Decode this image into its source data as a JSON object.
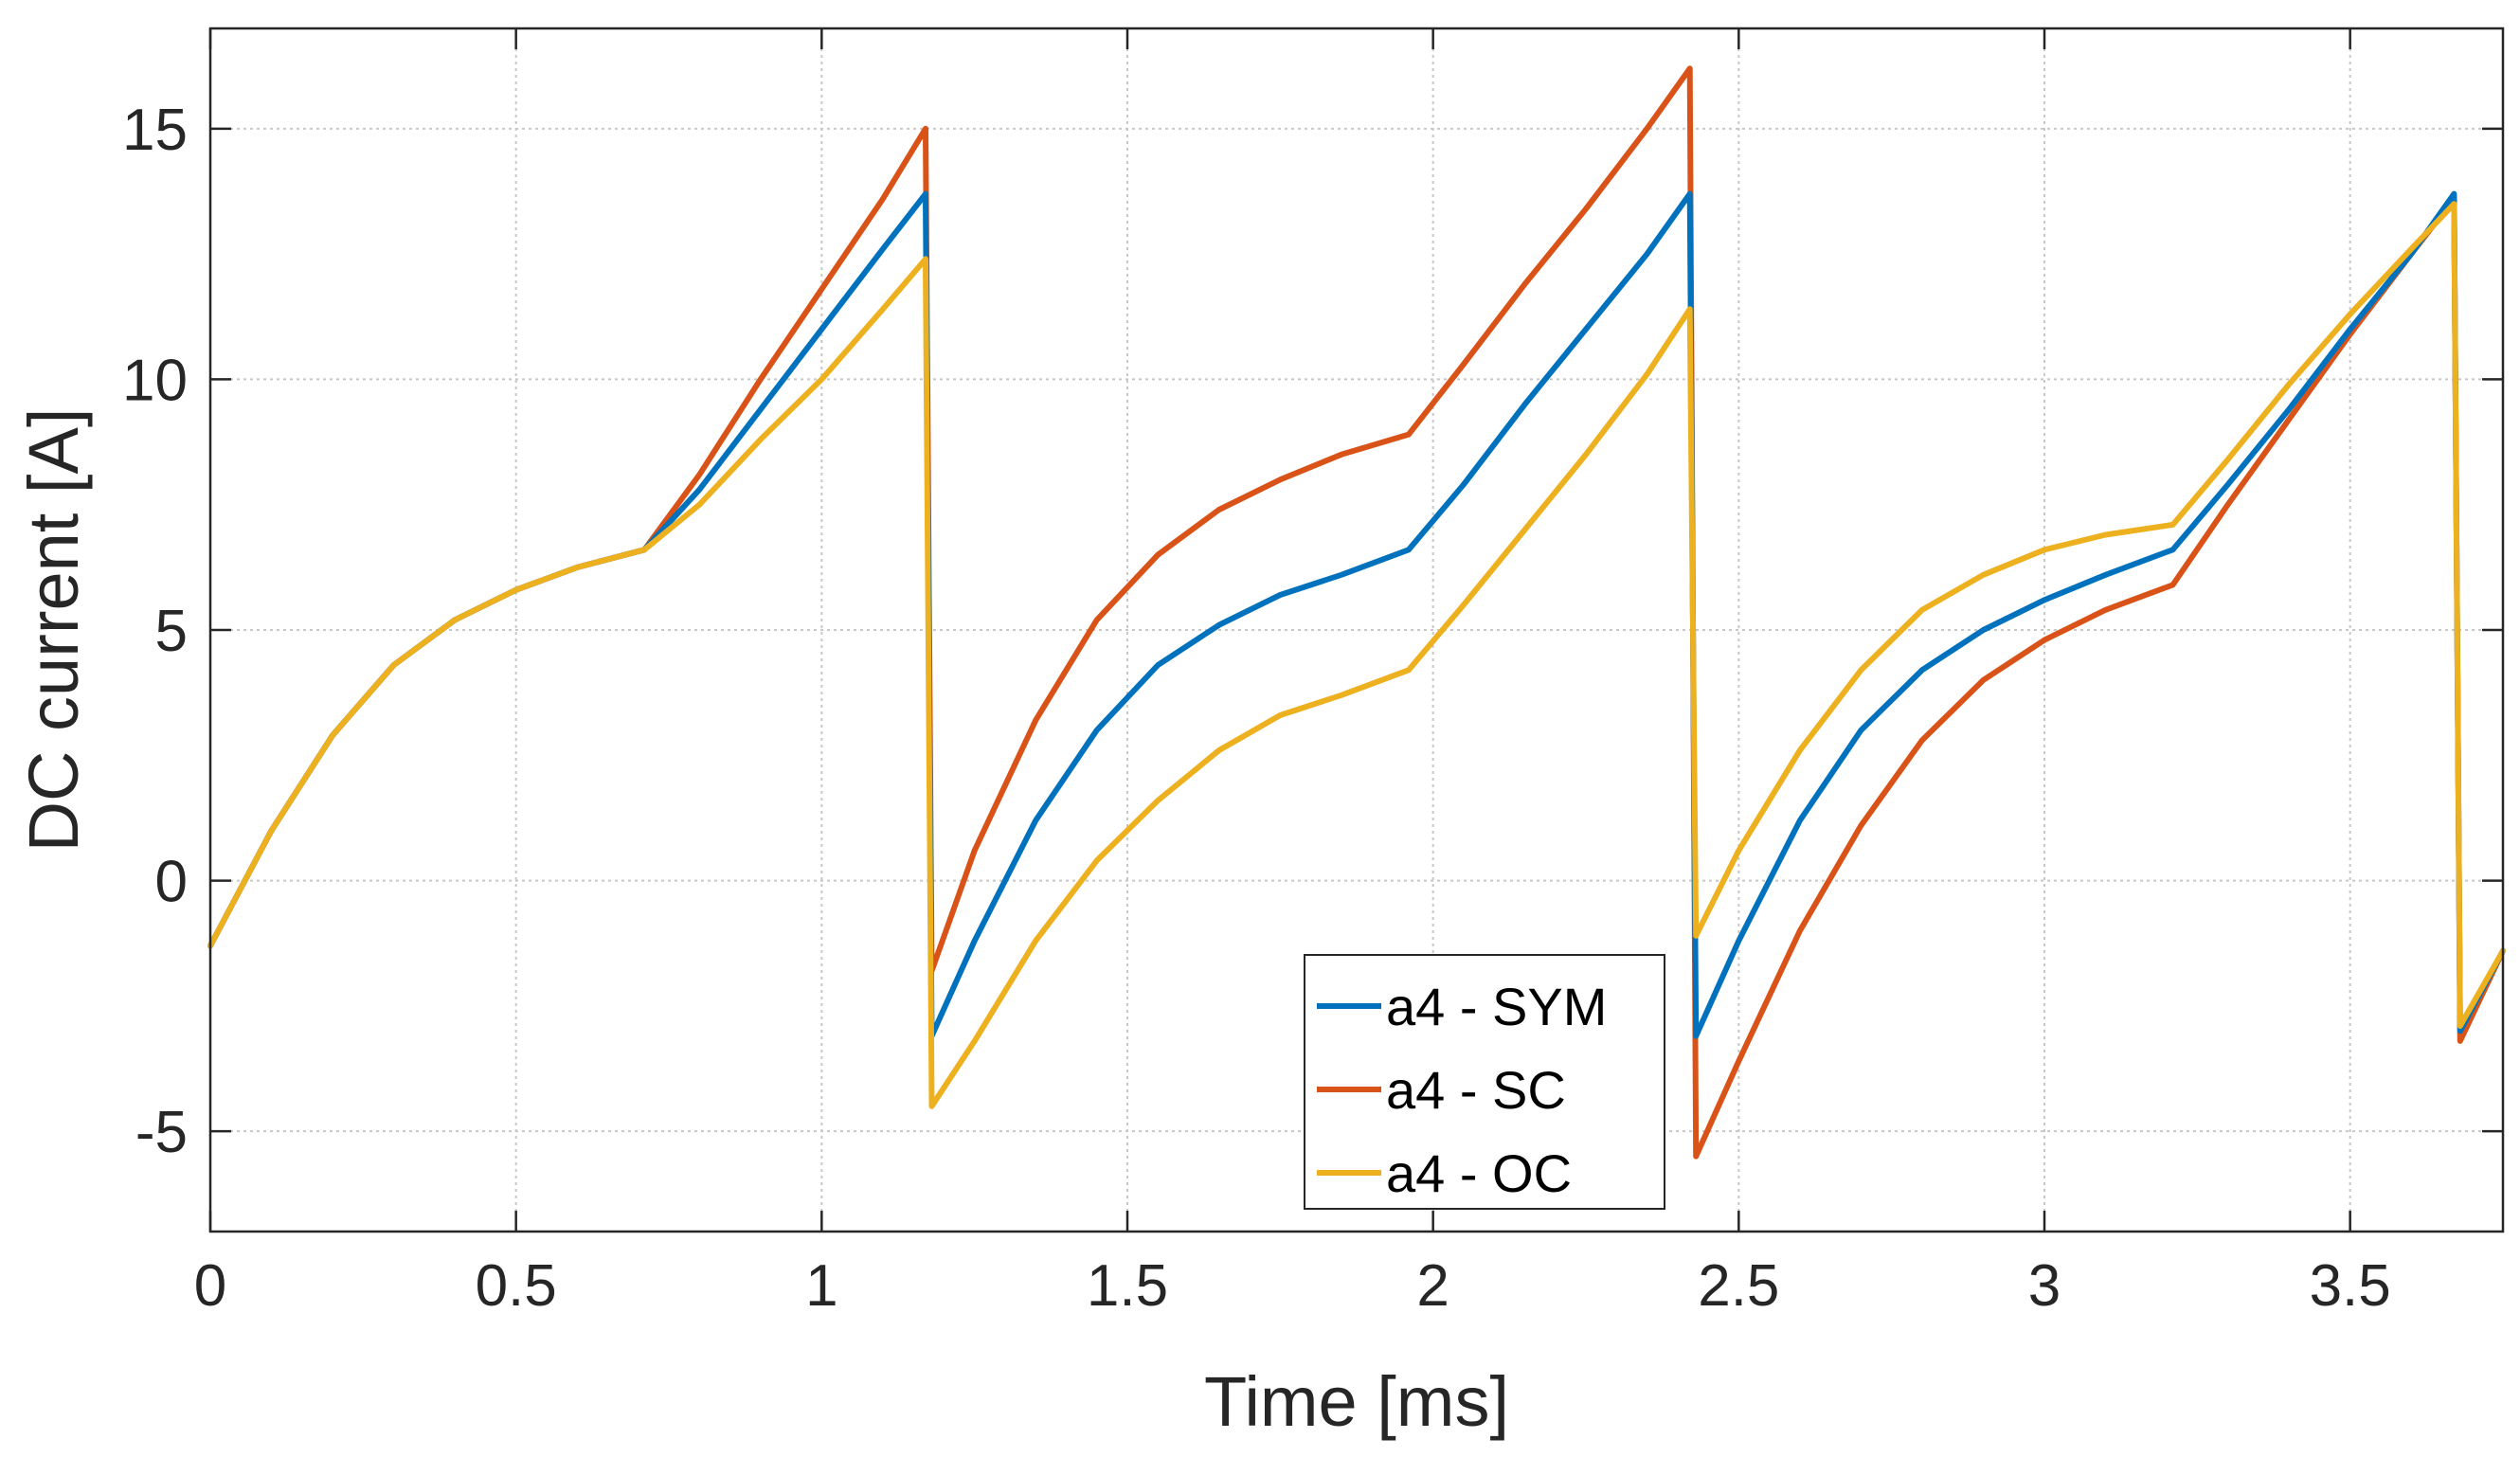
{
  "chart_data": {
    "type": "line",
    "title": "",
    "xlabel": "Time  [ms]",
    "ylabel": "DC current [A]",
    "xlim": [
      0,
      3.75
    ],
    "ylim": [
      -7,
      17
    ],
    "xticks": [
      0,
      0.5,
      1,
      1.5,
      2,
      2.5,
      3,
      3.5
    ],
    "xtick_labels": [
      "0",
      "0.5",
      "1",
      "1.5",
      "2",
      "2.5",
      "3",
      "3.5"
    ],
    "yticks": [
      -5,
      0,
      5,
      10,
      15
    ],
    "ytick_labels": [
      "-5",
      "0",
      "5",
      "10",
      "15"
    ],
    "grid": true,
    "legend_position": "bottom-center",
    "series": [
      {
        "name": "a4 - SYM",
        "color": "#0072BD",
        "points": [
          [
            0,
            -1.3
          ],
          [
            0.1,
            1.0
          ],
          [
            0.2,
            2.9
          ],
          [
            0.3,
            4.3
          ],
          [
            0.4,
            5.2
          ],
          [
            0.5,
            5.8
          ],
          [
            0.6,
            6.25
          ],
          [
            0.71,
            6.6
          ],
          [
            0.8,
            7.8
          ],
          [
            0.9,
            9.4
          ],
          [
            1.0,
            11.0
          ],
          [
            1.1,
            12.6
          ],
          [
            1.17,
            13.7
          ],
          [
            1.18,
            -3.1
          ],
          [
            1.25,
            -1.2
          ],
          [
            1.35,
            1.2
          ],
          [
            1.45,
            3.0
          ],
          [
            1.55,
            4.3
          ],
          [
            1.65,
            5.1
          ],
          [
            1.75,
            5.7
          ],
          [
            1.85,
            6.1
          ],
          [
            1.96,
            6.6
          ],
          [
            2.05,
            7.9
          ],
          [
            2.15,
            9.5
          ],
          [
            2.25,
            11.0
          ],
          [
            2.35,
            12.5
          ],
          [
            2.42,
            13.7
          ],
          [
            2.43,
            -3.1
          ],
          [
            2.5,
            -1.2
          ],
          [
            2.6,
            1.2
          ],
          [
            2.7,
            3.0
          ],
          [
            2.8,
            4.2
          ],
          [
            2.9,
            5.0
          ],
          [
            3.0,
            5.6
          ],
          [
            3.1,
            6.1
          ],
          [
            3.21,
            6.6
          ],
          [
            3.3,
            7.9
          ],
          [
            3.4,
            9.4
          ],
          [
            3.5,
            11.0
          ],
          [
            3.6,
            12.5
          ],
          [
            3.67,
            13.7
          ],
          [
            3.68,
            -3.0
          ],
          [
            3.75,
            -1.4
          ]
        ]
      },
      {
        "name": "a4 - SC",
        "color": "#D95319",
        "points": [
          [
            0,
            -1.3
          ],
          [
            0.1,
            1.0
          ],
          [
            0.2,
            2.9
          ],
          [
            0.3,
            4.3
          ],
          [
            0.4,
            5.2
          ],
          [
            0.5,
            5.8
          ],
          [
            0.6,
            6.25
          ],
          [
            0.71,
            6.6
          ],
          [
            0.8,
            8.1
          ],
          [
            0.9,
            10.0
          ],
          [
            1.0,
            11.8
          ],
          [
            1.1,
            13.6
          ],
          [
            1.17,
            15.0
          ],
          [
            1.18,
            -1.8
          ],
          [
            1.25,
            0.6
          ],
          [
            1.35,
            3.2
          ],
          [
            1.45,
            5.2
          ],
          [
            1.55,
            6.5
          ],
          [
            1.65,
            7.4
          ],
          [
            1.75,
            8.0
          ],
          [
            1.85,
            8.5
          ],
          [
            1.96,
            8.9
          ],
          [
            2.05,
            10.3
          ],
          [
            2.15,
            11.9
          ],
          [
            2.25,
            13.4
          ],
          [
            2.35,
            15.0
          ],
          [
            2.42,
            16.2
          ],
          [
            2.43,
            -5.5
          ],
          [
            2.5,
            -3.6
          ],
          [
            2.6,
            -1.0
          ],
          [
            2.7,
            1.1
          ],
          [
            2.8,
            2.8
          ],
          [
            2.9,
            4.0
          ],
          [
            3.0,
            4.8
          ],
          [
            3.1,
            5.4
          ],
          [
            3.21,
            5.9
          ],
          [
            3.3,
            7.5
          ],
          [
            3.4,
            9.2
          ],
          [
            3.5,
            10.9
          ],
          [
            3.6,
            12.5
          ],
          [
            3.67,
            13.6
          ],
          [
            3.68,
            -3.2
          ],
          [
            3.75,
            -1.4
          ]
        ]
      },
      {
        "name": "a4 - OC",
        "color": "#EDB120",
        "points": [
          [
            0,
            -1.3
          ],
          [
            0.1,
            1.0
          ],
          [
            0.2,
            2.9
          ],
          [
            0.3,
            4.3
          ],
          [
            0.4,
            5.2
          ],
          [
            0.5,
            5.8
          ],
          [
            0.6,
            6.25
          ],
          [
            0.71,
            6.6
          ],
          [
            0.8,
            7.5
          ],
          [
            0.9,
            8.8
          ],
          [
            1.0,
            10.0
          ],
          [
            1.1,
            11.4
          ],
          [
            1.17,
            12.4
          ],
          [
            1.18,
            -4.5
          ],
          [
            1.25,
            -3.2
          ],
          [
            1.35,
            -1.2
          ],
          [
            1.45,
            0.4
          ],
          [
            1.55,
            1.6
          ],
          [
            1.65,
            2.6
          ],
          [
            1.75,
            3.3
          ],
          [
            1.85,
            3.7
          ],
          [
            1.96,
            4.2
          ],
          [
            2.05,
            5.5
          ],
          [
            2.15,
            7.0
          ],
          [
            2.25,
            8.5
          ],
          [
            2.35,
            10.1
          ],
          [
            2.42,
            11.4
          ],
          [
            2.43,
            -1.1
          ],
          [
            2.5,
            0.6
          ],
          [
            2.6,
            2.6
          ],
          [
            2.7,
            4.2
          ],
          [
            2.8,
            5.4
          ],
          [
            2.9,
            6.1
          ],
          [
            3.0,
            6.6
          ],
          [
            3.1,
            6.9
          ],
          [
            3.21,
            7.1
          ],
          [
            3.3,
            8.4
          ],
          [
            3.4,
            9.9
          ],
          [
            3.5,
            11.3
          ],
          [
            3.6,
            12.6
          ],
          [
            3.67,
            13.5
          ],
          [
            3.68,
            -2.9
          ],
          [
            3.75,
            -1.4
          ]
        ]
      }
    ]
  }
}
